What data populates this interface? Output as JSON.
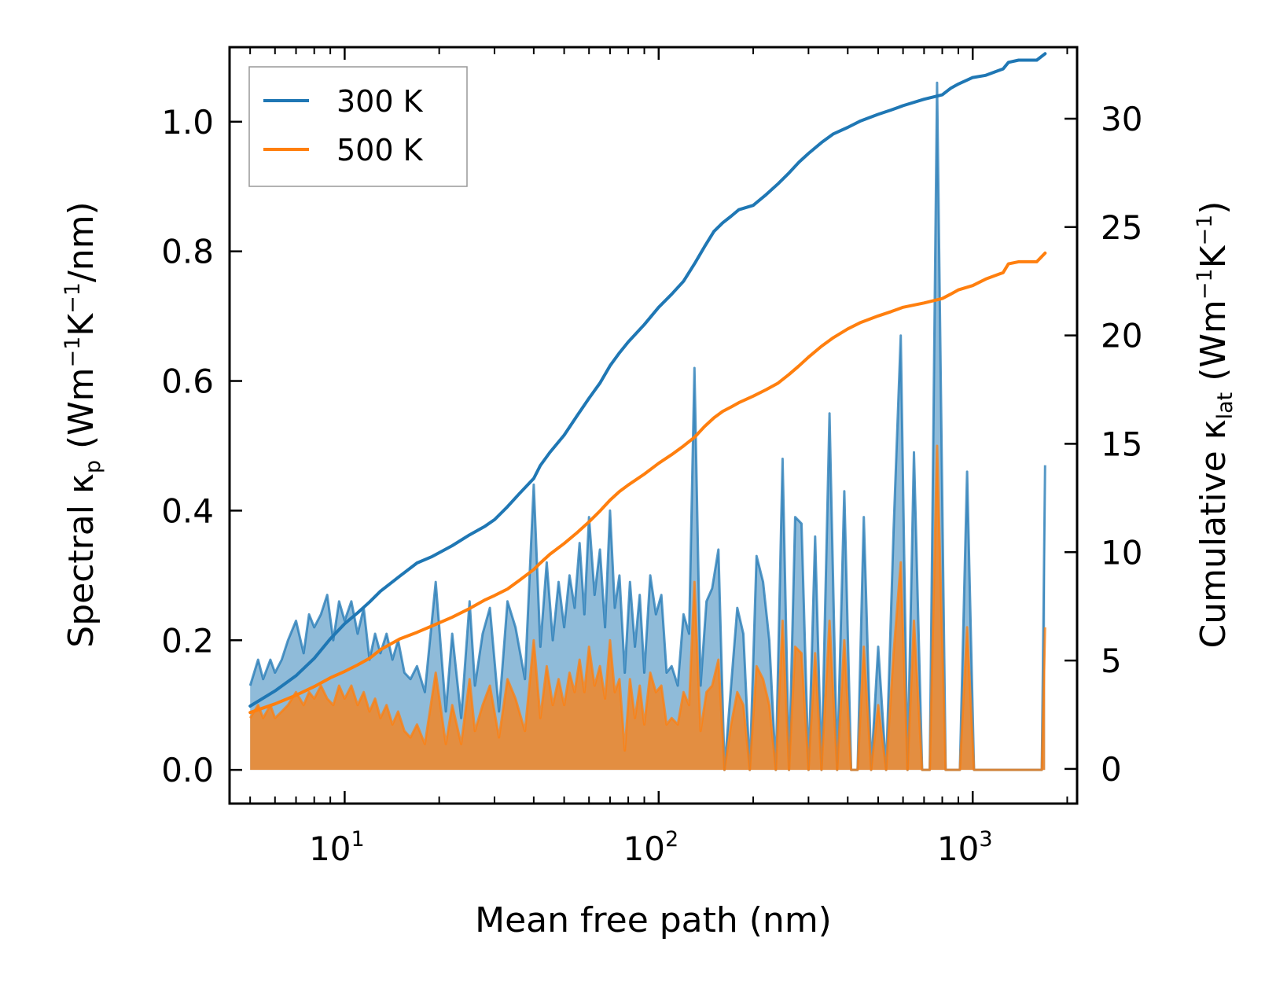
{
  "chart_data": {
    "type": "line",
    "xscale": "log",
    "xlabel": "Mean free path (nm)",
    "xlim": [
      4.3,
      2150
    ],
    "ylabel_left": {
      "prefix": "Spectral κ",
      "sub": "p",
      "unit_a": " (Wm",
      "sup1": "−1",
      "unit_b": "K",
      "sup2": "−1",
      "unit_c": "/nm)"
    },
    "ylabel_right": {
      "prefix": "Cumulative κ",
      "sub": "lat",
      "unit_a": " (Wm",
      "sup1": "−1",
      "unit_b": "K",
      "sup2": "−1",
      "unit_c": ")"
    },
    "ylim_left": [
      -0.052,
      1.115
    ],
    "ylim_right": [
      -1.6,
      33.3
    ],
    "yticks_left": [
      "0.0",
      "0.2",
      "0.4",
      "0.6",
      "0.8",
      "1.0"
    ],
    "yticks_left_values": [
      0,
      0.2,
      0.4,
      0.6,
      0.8,
      1.0
    ],
    "yticks_right": [
      "0",
      "5",
      "10",
      "15",
      "20",
      "25",
      "30"
    ],
    "yticks_right_values": [
      0,
      5,
      10,
      15,
      20,
      25,
      30
    ],
    "xticks": [
      {
        "base": "10",
        "exp": "1",
        "value": 10
      },
      {
        "base": "10",
        "exp": "2",
        "value": 100
      },
      {
        "base": "10",
        "exp": "3",
        "value": 1000
      }
    ],
    "legend": [
      {
        "label": "300 K",
        "color": "#1f77b4"
      },
      {
        "label": "500 K",
        "color": "#ff7f0e"
      }
    ],
    "series": [
      {
        "name": "300 K spectral",
        "axis": "left",
        "style": "filled",
        "color": "#1f77b4",
        "x": [
          5.0,
          5.3,
          5.5,
          5.8,
          6.0,
          6.3,
          6.6,
          7.0,
          7.4,
          7.7,
          8.0,
          8.4,
          8.8,
          9.2,
          9.6,
          10.0,
          10.5,
          11.0,
          11.5,
          12.0,
          12.5,
          13.0,
          13.6,
          14.2,
          14.8,
          15.5,
          16.2,
          17.0,
          18.0,
          19.5,
          21.0,
          22.0,
          23.5,
          25.0,
          26.0,
          27.5,
          29.0,
          31.0,
          33.0,
          35.0,
          37.5,
          40.0,
          42.0,
          44.0,
          46.0,
          48.0,
          50.0,
          52.0,
          54.0,
          56.0,
          58.0,
          60.0,
          62.5,
          65.0,
          67.5,
          70.0,
          72.5,
          75.0,
          78.0,
          81.0,
          84.0,
          87.0,
          90.0,
          94.0,
          98.0,
          102.0,
          106.0,
          110.0,
          115.0,
          120.0,
          125.0,
          130.0,
          136.0,
          142.0,
          148.0,
          155.0,
          162.0,
          170.0,
          178.0,
          186.0,
          195.0,
          205.0,
          215.0,
          225.0,
          236.0,
          248.0,
          260.0,
          272.0,
          285.0,
          300.0,
          315.0,
          330.0,
          350.0,
          370.0,
          390.0,
          410.0,
          430.0,
          450.0,
          475.0,
          500.0,
          530.0,
          560.0,
          590.0,
          620.0,
          650.0,
          690.0,
          730.0,
          770.0,
          820.0,
          870.0,
          910.0,
          960.0,
          1010.0,
          1060.0,
          1120.0,
          1180.0,
          1240.0,
          1300.0,
          1340.0,
          1380.0,
          1430.0,
          1500.0,
          1580.0,
          1660.0,
          1700.0
        ],
        "y": [
          0.13,
          0.17,
          0.14,
          0.17,
          0.15,
          0.17,
          0.2,
          0.23,
          0.18,
          0.24,
          0.22,
          0.24,
          0.27,
          0.2,
          0.26,
          0.23,
          0.26,
          0.21,
          0.25,
          0.17,
          0.21,
          0.18,
          0.21,
          0.17,
          0.2,
          0.15,
          0.14,
          0.16,
          0.12,
          0.29,
          0.09,
          0.21,
          0.08,
          0.26,
          0.13,
          0.21,
          0.25,
          0.09,
          0.26,
          0.22,
          0.14,
          0.44,
          0.19,
          0.32,
          0.2,
          0.29,
          0.22,
          0.3,
          0.25,
          0.35,
          0.24,
          0.39,
          0.27,
          0.34,
          0.22,
          0.4,
          0.25,
          0.3,
          0.15,
          0.29,
          0.19,
          0.27,
          0.15,
          0.3,
          0.24,
          0.27,
          0.15,
          0.16,
          0.13,
          0.24,
          0.21,
          0.62,
          0.13,
          0.26,
          0.28,
          0.34,
          0.0,
          0.13,
          0.25,
          0.21,
          0.0,
          0.33,
          0.29,
          0.2,
          0.0,
          0.48,
          0.0,
          0.39,
          0.38,
          0.0,
          0.36,
          0.0,
          0.55,
          0.0,
          0.43,
          0.0,
          0.0,
          0.39,
          0.0,
          0.19,
          0.0,
          0.37,
          0.67,
          0.0,
          0.49,
          0.0,
          0.0,
          1.06,
          0.0,
          0.0,
          0.0,
          0.46,
          0.0,
          0.0,
          0.0,
          0.0,
          0.0,
          0.0,
          0.0,
          0.0,
          0.0,
          0.0,
          0.0,
          0.0,
          0.47
        ]
      },
      {
        "name": "500 K spectral",
        "axis": "left",
        "style": "filled",
        "color": "#ff7f0e",
        "x": [
          5.0,
          5.3,
          5.5,
          5.8,
          6.0,
          6.3,
          6.6,
          7.0,
          7.4,
          7.7,
          8.0,
          8.4,
          8.8,
          9.2,
          9.6,
          10.0,
          10.5,
          11.0,
          11.5,
          12.0,
          12.5,
          13.0,
          13.6,
          14.2,
          14.8,
          15.5,
          16.2,
          17.0,
          18.0,
          19.5,
          21.0,
          22.0,
          23.5,
          25.0,
          26.0,
          27.5,
          29.0,
          31.0,
          33.0,
          35.0,
          37.5,
          40.0,
          42.0,
          44.0,
          46.0,
          48.0,
          50.0,
          52.0,
          54.0,
          56.0,
          58.0,
          60.0,
          62.5,
          65.0,
          67.5,
          70.0,
          72.5,
          75.0,
          78.0,
          81.0,
          84.0,
          87.0,
          90.0,
          94.0,
          98.0,
          102.0,
          106.0,
          110.0,
          115.0,
          120.0,
          125.0,
          130.0,
          136.0,
          142.0,
          148.0,
          155.0,
          162.0,
          170.0,
          178.0,
          186.0,
          195.0,
          205.0,
          215.0,
          225.0,
          236.0,
          248.0,
          260.0,
          272.0,
          285.0,
          300.0,
          315.0,
          330.0,
          350.0,
          370.0,
          390.0,
          410.0,
          430.0,
          450.0,
          475.0,
          500.0,
          530.0,
          560.0,
          590.0,
          620.0,
          650.0,
          690.0,
          730.0,
          770.0,
          820.0,
          870.0,
          910.0,
          960.0,
          1010.0,
          1060.0,
          1120.0,
          1180.0,
          1240.0,
          1300.0,
          1340.0,
          1380.0,
          1430.0,
          1500.0,
          1580.0,
          1660.0,
          1700.0
        ],
        "y": [
          0.08,
          0.1,
          0.08,
          0.1,
          0.08,
          0.09,
          0.1,
          0.12,
          0.1,
          0.12,
          0.11,
          0.13,
          0.11,
          0.1,
          0.13,
          0.11,
          0.13,
          0.1,
          0.12,
          0.09,
          0.11,
          0.08,
          0.1,
          0.07,
          0.09,
          0.06,
          0.05,
          0.07,
          0.04,
          0.15,
          0.04,
          0.1,
          0.04,
          0.14,
          0.06,
          0.1,
          0.13,
          0.05,
          0.14,
          0.11,
          0.06,
          0.2,
          0.08,
          0.16,
          0.1,
          0.14,
          0.1,
          0.15,
          0.12,
          0.17,
          0.12,
          0.19,
          0.13,
          0.16,
          0.11,
          0.2,
          0.12,
          0.14,
          0.03,
          0.14,
          0.08,
          0.13,
          0.07,
          0.15,
          0.12,
          0.13,
          0.07,
          0.08,
          0.07,
          0.12,
          0.1,
          0.29,
          0.06,
          0.12,
          0.13,
          0.17,
          0.0,
          0.07,
          0.12,
          0.1,
          0.0,
          0.16,
          0.14,
          0.1,
          0.0,
          0.23,
          0.0,
          0.19,
          0.18,
          0.0,
          0.18,
          0.0,
          0.23,
          0.0,
          0.2,
          0.0,
          0.0,
          0.19,
          0.0,
          0.1,
          0.0,
          0.18,
          0.32,
          0.0,
          0.23,
          0.0,
          0.0,
          0.5,
          0.0,
          0.0,
          0.0,
          0.22,
          0.0,
          0.0,
          0.0,
          0.0,
          0.0,
          0.0,
          0.0,
          0.0,
          0.0,
          0.0,
          0.0,
          0.0,
          0.22
        ]
      },
      {
        "name": "300 K cumulative",
        "axis": "right",
        "style": "line",
        "color": "#1f77b4",
        "x": [
          5.0,
          6.0,
          7.0,
          8.0,
          9.0,
          10.0,
          11.0,
          12.0,
          13.0,
          15.0,
          17.0,
          19.0,
          22.0,
          25.0,
          28.0,
          30.0,
          33.0,
          36.0,
          40.0,
          42.0,
          45.0,
          50.0,
          55.0,
          60.0,
          65.0,
          70.0,
          75.0,
          80.0,
          90.0,
          100.0,
          110.0,
          120.0,
          130.0,
          140.0,
          150.0,
          160.0,
          170.0,
          180.0,
          200.0,
          220.0,
          240.0,
          260.0,
          280.0,
          300.0,
          330.0,
          360.0,
          400.0,
          440.0,
          500.0,
          550.0,
          600.0,
          700.0,
          800.0,
          850.0,
          900.0,
          1000.0,
          1100.0,
          1250.0,
          1300.0,
          1400.0,
          1600.0,
          1700.0
        ],
        "y": [
          2.9,
          3.6,
          4.3,
          5.1,
          6.0,
          6.7,
          7.2,
          7.7,
          8.2,
          8.9,
          9.5,
          9.8,
          10.3,
          10.8,
          11.2,
          11.5,
          12.1,
          12.7,
          13.4,
          14.0,
          14.6,
          15.4,
          16.3,
          17.1,
          17.8,
          18.6,
          19.2,
          19.7,
          20.5,
          21.3,
          21.9,
          22.5,
          23.3,
          24.1,
          24.8,
          25.2,
          25.5,
          25.8,
          26.0,
          26.5,
          27.0,
          27.5,
          28.0,
          28.4,
          28.9,
          29.3,
          29.6,
          29.9,
          30.2,
          30.4,
          30.6,
          30.9,
          31.1,
          31.4,
          31.6,
          31.9,
          32.0,
          32.3,
          32.6,
          32.7,
          32.7,
          33.0
        ]
      },
      {
        "name": "500 K cumulative",
        "axis": "right",
        "style": "line",
        "color": "#ff7f0e",
        "x": [
          5.0,
          6.0,
          7.0,
          8.0,
          9.0,
          10.0,
          11.0,
          12.0,
          13.0,
          15.0,
          17.0,
          19.0,
          22.0,
          25.0,
          28.0,
          30.0,
          33.0,
          36.0,
          40.0,
          42.0,
          45.0,
          50.0,
          55.0,
          60.0,
          65.0,
          70.0,
          75.0,
          80.0,
          90.0,
          100.0,
          110.0,
          120.0,
          130.0,
          140.0,
          150.0,
          160.0,
          170.0,
          180.0,
          200.0,
          220.0,
          240.0,
          260.0,
          280.0,
          300.0,
          330.0,
          360.0,
          400.0,
          440.0,
          500.0,
          550.0,
          600.0,
          700.0,
          800.0,
          850.0,
          900.0,
          1000.0,
          1100.0,
          1250.0,
          1300.0,
          1400.0,
          1600.0,
          1700.0
        ],
        "y": [
          2.6,
          3.0,
          3.4,
          3.8,
          4.2,
          4.5,
          4.8,
          5.1,
          5.5,
          6.0,
          6.3,
          6.6,
          7.0,
          7.4,
          7.8,
          8.0,
          8.3,
          8.7,
          9.2,
          9.5,
          9.9,
          10.4,
          10.9,
          11.4,
          11.9,
          12.4,
          12.8,
          13.1,
          13.6,
          14.1,
          14.5,
          14.9,
          15.3,
          15.8,
          16.2,
          16.5,
          16.7,
          16.9,
          17.2,
          17.5,
          17.8,
          18.2,
          18.6,
          19.0,
          19.5,
          19.9,
          20.3,
          20.6,
          20.9,
          21.1,
          21.3,
          21.5,
          21.7,
          21.9,
          22.1,
          22.3,
          22.6,
          22.9,
          23.3,
          23.4,
          23.4,
          23.8
        ]
      }
    ]
  }
}
